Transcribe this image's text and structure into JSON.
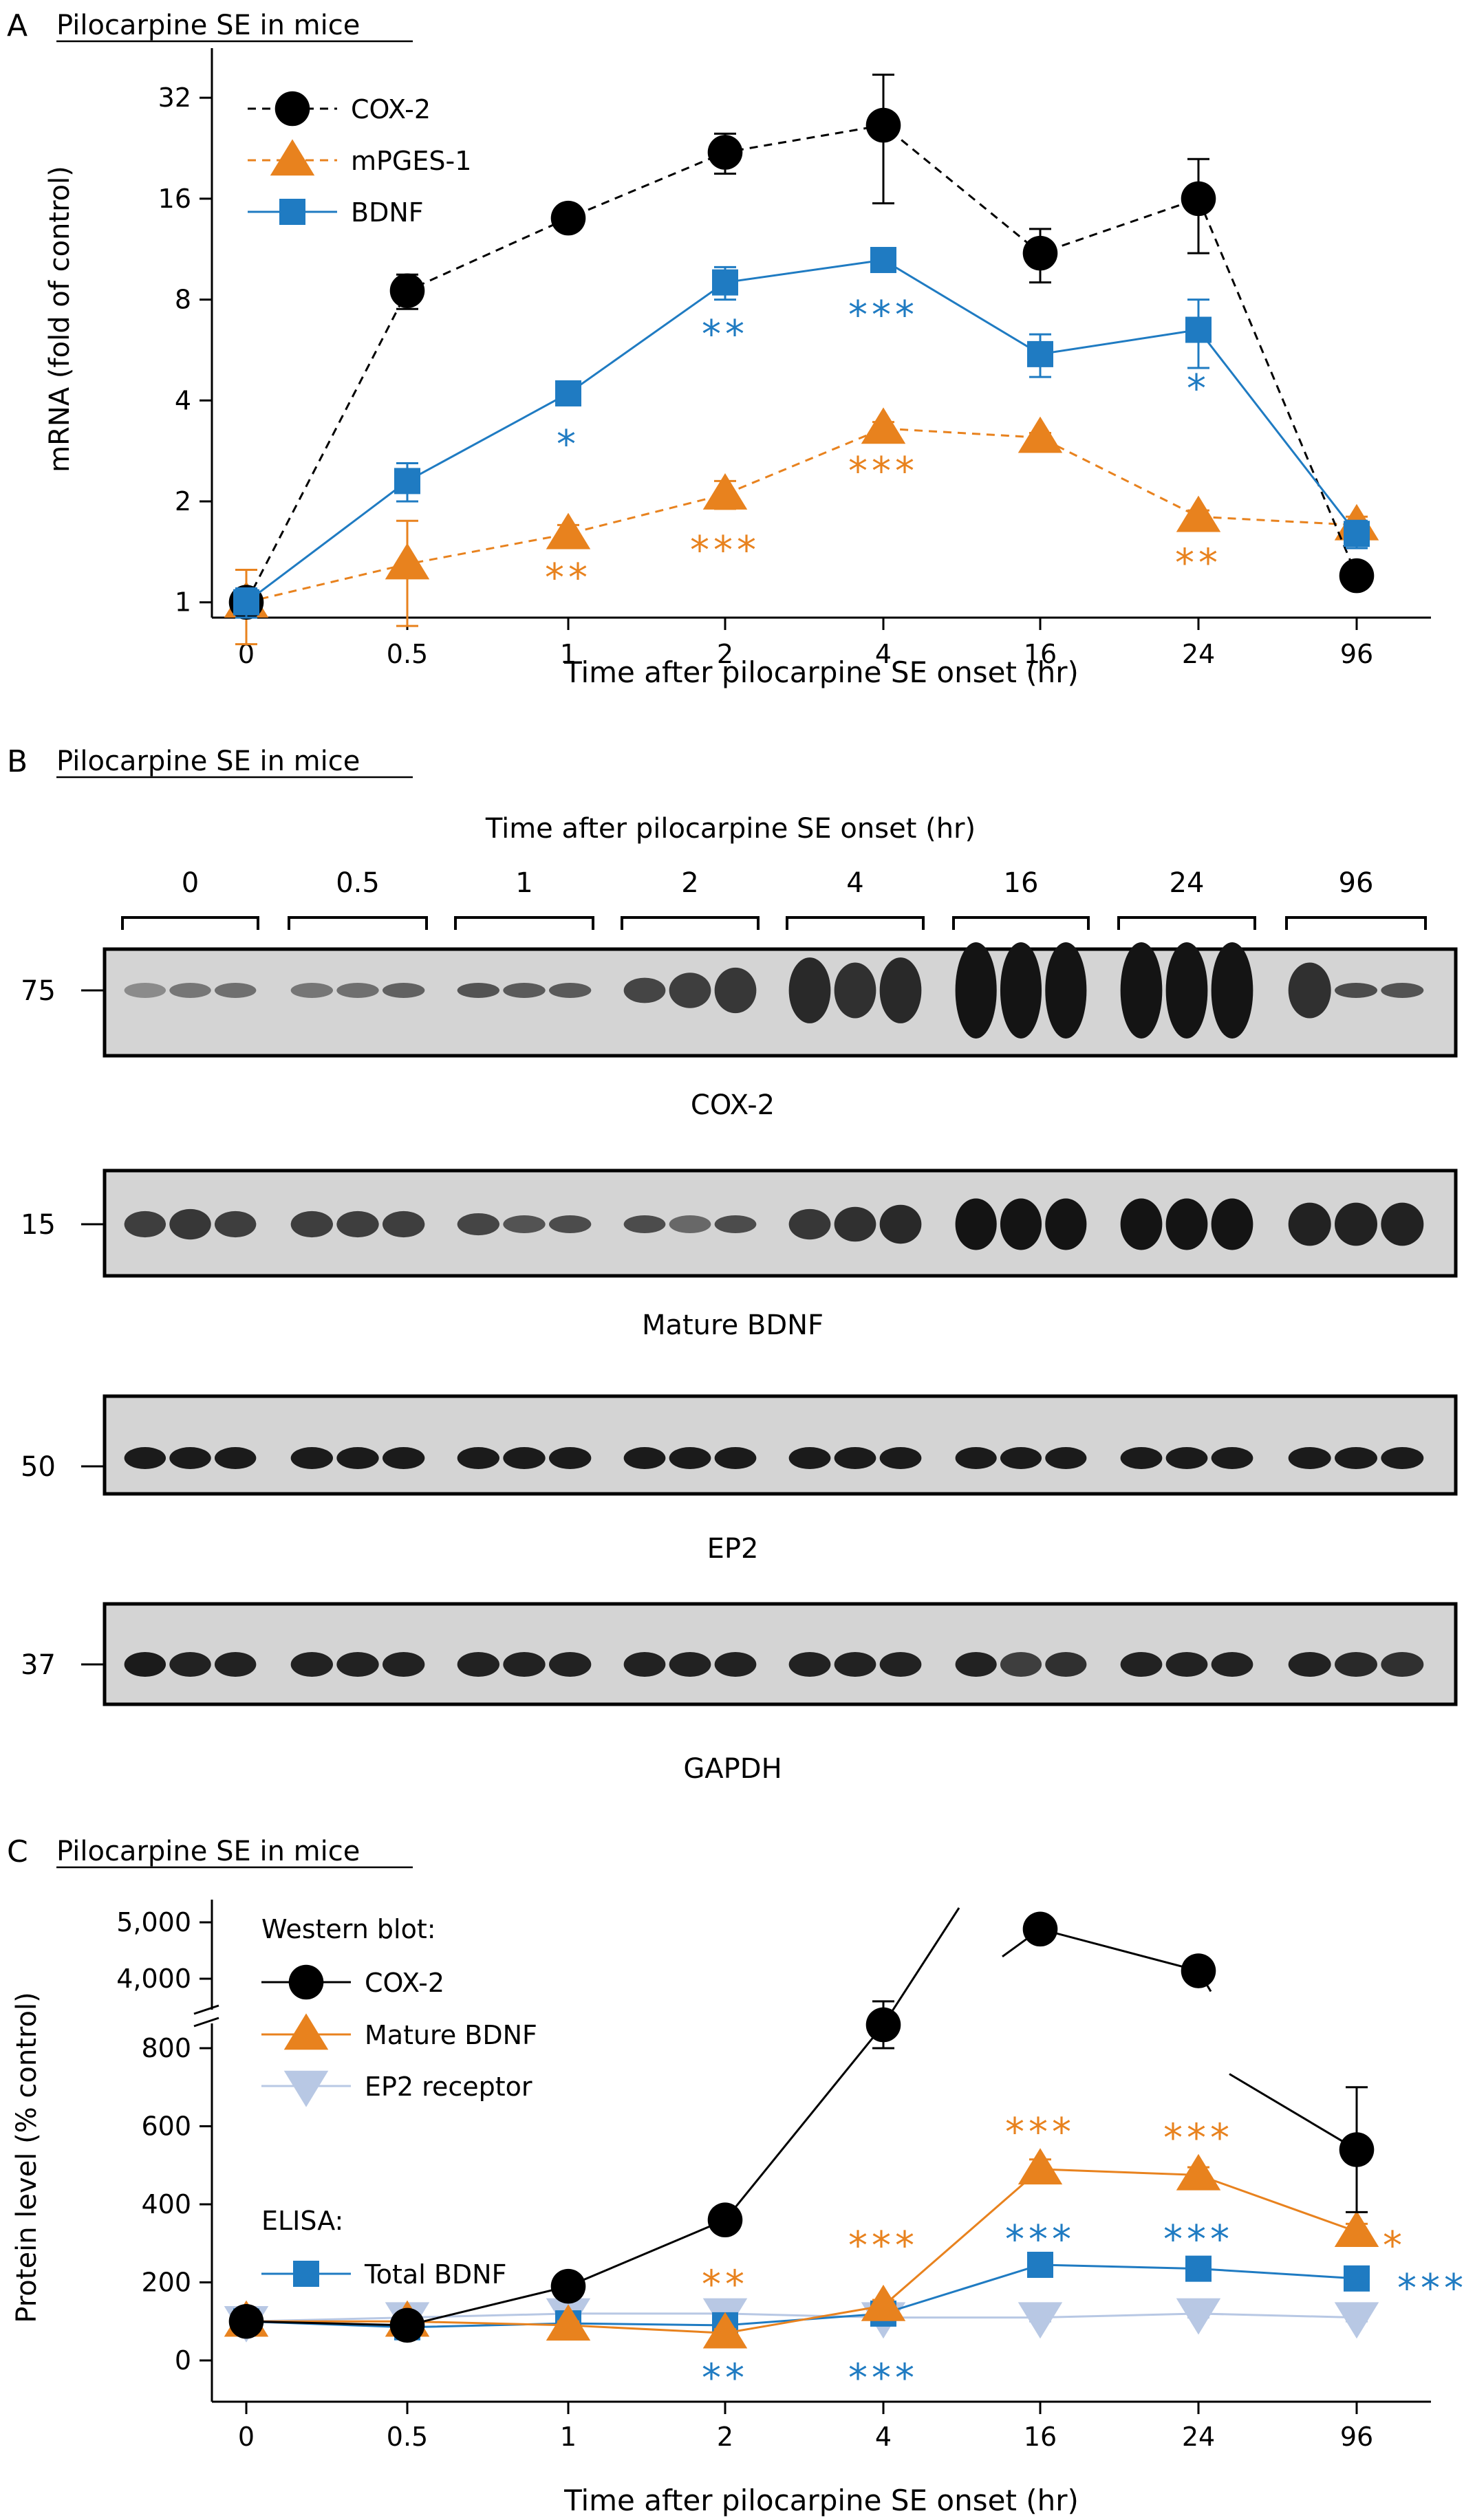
{
  "figure": {
    "x_ticks": [
      "0",
      "0.5",
      "1",
      "2",
      "4",
      "16",
      "24",
      "96"
    ],
    "panel_a": {
      "letter": "A",
      "heading": "Pilocarpine SE in mice"
    },
    "panel_b": {
      "letter": "B",
      "heading": "Pilocarpine SE in mice",
      "time_title": "Time after pilocarpine SE onset (hr)",
      "blots": [
        {
          "label": "COX-2",
          "marker": "75"
        },
        {
          "label": "Mature BDNF",
          "marker": "15"
        },
        {
          "label": "EP2",
          "marker": "50"
        },
        {
          "label": "GAPDH",
          "marker": "37"
        }
      ]
    },
    "panel_c": {
      "letter": "C",
      "heading": "Pilocarpine SE in mice",
      "legend_group1": "Western blot:",
      "legend_group2": "ELISA:"
    }
  },
  "colors": {
    "cox2": "#000000",
    "mpges1": "#E8821E",
    "bdnf": "#1F7BC2",
    "ep2": "#B8C8E4",
    "axis": "#000000"
  },
  "chart_data": [
    {
      "type": "line",
      "title": "",
      "xlabel": "Time after pilocarpine SE onset (hr)",
      "ylabel": "mRNA (fold of control)",
      "categories": [
        "0",
        "0.5",
        "1",
        "2",
        "4",
        "16",
        "24",
        "96"
      ],
      "y_scale": "log2",
      "ylim": [
        0.9,
        45
      ],
      "y_ticks": [
        1,
        2,
        4,
        8,
        16,
        32
      ],
      "y_tick_labels": [
        "1",
        "2",
        "4",
        "8",
        "16",
        "32"
      ],
      "legend": "top-left",
      "series": [
        {
          "name": "COX-2",
          "color_key": "cox2",
          "marker": "circle",
          "line": "dashed",
          "values": [
            1.0,
            8.5,
            14.0,
            22.0,
            26.5,
            11.0,
            16.0,
            1.2
          ],
          "errors": [
            0.05,
            1.0,
            0.8,
            3.0,
            11.0,
            2.0,
            5.0,
            0.1
          ]
        },
        {
          "name": "mPGES-1",
          "color_key": "mpges1",
          "marker": "triangle-up",
          "line": "dashed",
          "values": [
            1.0,
            1.3,
            1.6,
            2.1,
            3.3,
            3.1,
            1.8,
            1.7
          ],
          "errors": [
            0.25,
            0.45,
            0.1,
            0.2,
            0.15,
            0.1,
            0.08,
            0.1
          ]
        },
        {
          "name": "BDNF",
          "color_key": "bdnf",
          "marker": "square",
          "line": "solid",
          "values": [
            1.0,
            2.3,
            4.2,
            9.0,
            10.5,
            5.5,
            6.5,
            1.6
          ],
          "errors": [
            0.1,
            0.3,
            0.3,
            1.0,
            0.8,
            0.8,
            1.5,
            0.15
          ]
        }
      ],
      "annotations": [
        {
          "category": "1",
          "text": "*",
          "color_key": "bdnf",
          "y": 3.0
        },
        {
          "category": "2",
          "text": "**",
          "color_key": "bdnf",
          "y": 6.4
        },
        {
          "category": "4",
          "text": "***",
          "color_key": "bdnf",
          "y": 7.3
        },
        {
          "category": "24",
          "text": "*",
          "color_key": "bdnf",
          "y": 4.4
        },
        {
          "category": "1",
          "text": "**",
          "color_key": "mpges1",
          "y": 1.2
        },
        {
          "category": "2",
          "text": "***",
          "color_key": "mpges1",
          "y": 1.45
        },
        {
          "category": "4",
          "text": "***",
          "color_key": "mpges1",
          "y": 2.5
        },
        {
          "category": "24",
          "text": "**",
          "color_key": "mpges1",
          "y": 1.33
        }
      ]
    },
    {
      "type": "line",
      "title": "",
      "xlabel": "Time after pilocarpine SE onset (hr)",
      "ylabel": "Protein level (% control)",
      "categories": [
        "0",
        "0.5",
        "1",
        "2",
        "4",
        "16",
        "24",
        "96"
      ],
      "y_scale": "broken",
      "ylim_lower": [
        -100,
        950
      ],
      "ylim_upper": [
        3800,
        5100
      ],
      "y_ticks_lower": [
        0,
        200,
        400,
        600,
        800
      ],
      "y_tick_labels_lower": [
        "0",
        "200",
        "400",
        "600",
        "800"
      ],
      "y_ticks_upper": [
        4000,
        5000
      ],
      "y_tick_labels_upper": [
        "4,000",
        "5,000"
      ],
      "legend": "top-left",
      "series": [
        {
          "name": "COX-2",
          "color_key": "cox2",
          "marker": "circle",
          "line": "solid",
          "group": "Western blot:",
          "values": [
            100,
            90,
            190,
            360,
            860,
            4880,
            4140,
            540
          ],
          "errors": [
            15,
            10,
            25,
            30,
            60,
            40,
            100,
            160
          ]
        },
        {
          "name": "Mature BDNF",
          "color_key": "mpges1",
          "marker": "triangle-up",
          "line": "solid",
          "group": "Western blot:",
          "values": [
            100,
            100,
            90,
            70,
            140,
            490,
            475,
            330
          ],
          "errors": [
            12,
            10,
            10,
            10,
            15,
            25,
            20,
            20
          ]
        },
        {
          "name": "EP2 receptor",
          "color_key": "ep2",
          "marker": "triangle-down",
          "line": "solid",
          "group": "Western blot:",
          "values": [
            100,
            110,
            120,
            120,
            110,
            110,
            120,
            110
          ],
          "errors": [
            10,
            10,
            10,
            10,
            10,
            10,
            10,
            10
          ]
        },
        {
          "name": "Total BDNF",
          "color_key": "bdnf",
          "marker": "square",
          "line": "solid",
          "group": "ELISA:",
          "values": [
            100,
            85,
            95,
            90,
            120,
            245,
            235,
            210
          ],
          "errors": [
            10,
            10,
            10,
            10,
            15,
            20,
            15,
            15
          ]
        }
      ],
      "annotations": [
        {
          "category": "2",
          "text": "**",
          "color_key": "mpges1",
          "y": 200
        },
        {
          "category": "4",
          "text": "***",
          "color_key": "mpges1",
          "y": 300
        },
        {
          "category": "16",
          "text": "***",
          "color_key": "mpges1",
          "y": 590
        },
        {
          "category": "24",
          "text": "***",
          "color_key": "mpges1",
          "y": 575
        },
        {
          "category": "96",
          "text": "*",
          "color_key": "mpges1",
          "y": 300,
          "side": "right"
        },
        {
          "category": "16",
          "text": "***",
          "color_key": "bdnf",
          "y": 315
        },
        {
          "category": "24",
          "text": "***",
          "color_key": "bdnf",
          "y": 315
        },
        {
          "category": "96",
          "text": "***",
          "color_key": "bdnf",
          "y": 190,
          "side": "right"
        },
        {
          "category": "2",
          "text": "**",
          "color_key": "bdnf",
          "y": -40
        },
        {
          "category": "4",
          "text": "***",
          "color_key": "bdnf",
          "y": -40
        }
      ]
    }
  ]
}
